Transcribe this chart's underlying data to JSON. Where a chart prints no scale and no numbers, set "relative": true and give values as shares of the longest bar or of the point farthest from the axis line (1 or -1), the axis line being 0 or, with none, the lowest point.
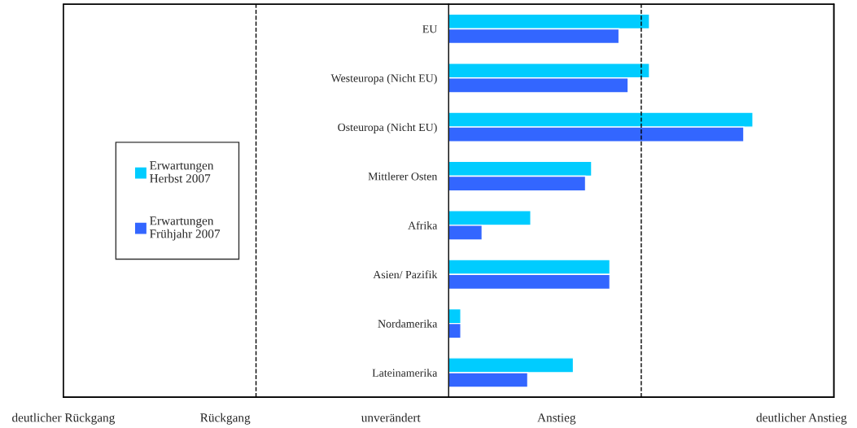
{
  "chart_data": {
    "type": "bar",
    "orientation": "horizontal",
    "relative": true,
    "categories": [
      "EU",
      "Westeuropa (Nicht EU)",
      "Osteuropa (Nicht EU)",
      "Mittlerer Osten",
      "Afrika",
      "Asien/ Pazifik",
      "Nordamerika",
      "Lateinamerika"
    ],
    "series": [
      {
        "name": "Erwartungen\nHerbst 2007",
        "color": "#00ccff",
        "values": [
          0.66,
          0.66,
          1.0,
          0.47,
          0.27,
          0.53,
          0.04,
          0.41
        ]
      },
      {
        "name": "Erwartungen\nFrühjahr 2007",
        "color": "#3366ff",
        "values": [
          0.56,
          0.59,
          0.97,
          0.45,
          0.11,
          0.53,
          0.04,
          0.26
        ]
      }
    ],
    "annotations": [
      "deutlicher Rückgang",
      "Rückgang",
      "unverändert",
      "Anstieg",
      "deutlicher Anstieg"
    ],
    "ref_lines": [
      {
        "axis": "x",
        "value": -0.633,
        "color": "#000000",
        "line_style": "dashed"
      },
      {
        "axis": "x",
        "value": 0.633,
        "color": "#000000",
        "line_style": "dashed"
      }
    ],
    "legend": "left",
    "marker": "square",
    "grid": false
  }
}
